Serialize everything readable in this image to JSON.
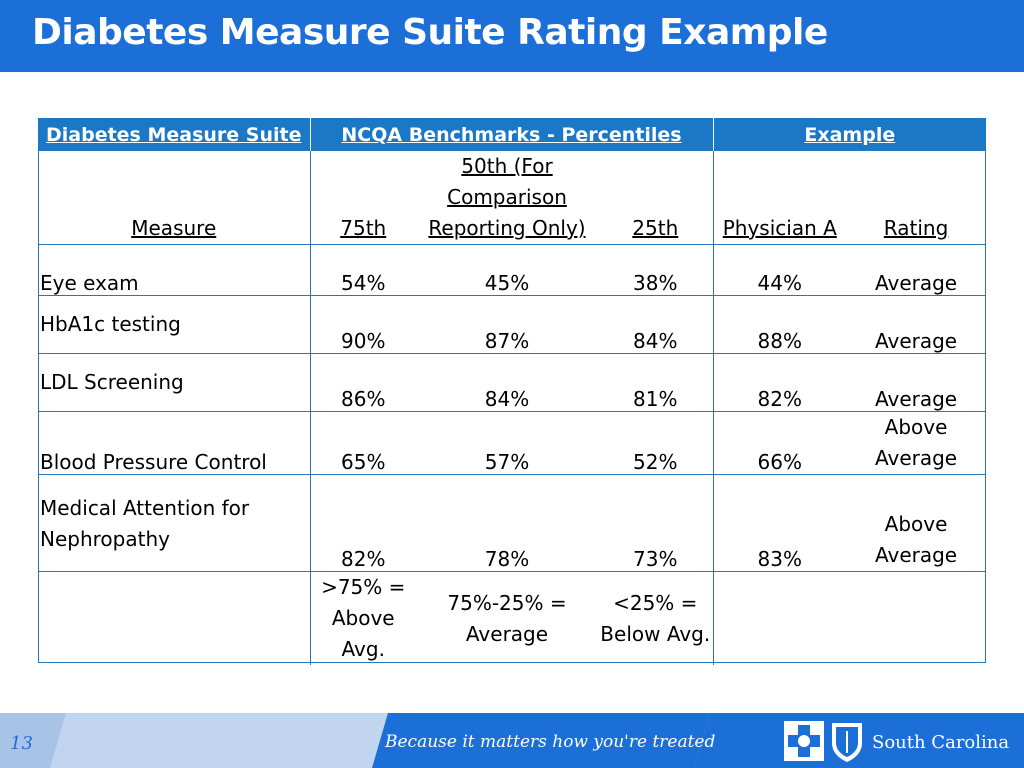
{
  "title": "Diabetes Measure Suite Rating Example",
  "table": {
    "group_headers": {
      "suite": "Diabetes Measure Suite",
      "benchmarks": "NCQA Benchmarks - Percentiles",
      "example": "Example"
    },
    "col_headers": {
      "measure": "Measure",
      "p75": "75th",
      "p50_line1": "50th (For",
      "p50_line2": "Comparison",
      "p50_line3": "Reporting Only)",
      "p25": "25th",
      "physician": "Physician A",
      "rating": "Rating"
    },
    "rows": [
      {
        "measure": "Eye exam",
        "p75": "54%",
        "p50": "45%",
        "p25": "38%",
        "physician": "44%",
        "rating": "Average"
      },
      {
        "measure": "HbA1c testing",
        "p75": "90%",
        "p50": "87%",
        "p25": "84%",
        "physician": "88%",
        "rating": "Average"
      },
      {
        "measure": "LDL Screening",
        "p75": "86%",
        "p50": "84%",
        "p25": "81%",
        "physician": "82%",
        "rating": "Average"
      },
      {
        "measure": "Blood Pressure Control",
        "p75": "65%",
        "p50": "57%",
        "p25": "52%",
        "physician": "66%",
        "rating_line1": "Above",
        "rating_line2": "Average"
      },
      {
        "measure_line1": "Medical Attention for",
        "measure_line2": "Nephropathy",
        "p75": "82%",
        "p50": "78%",
        "p25": "73%",
        "physician": "83%",
        "rating_line1": "Above",
        "rating_line2": "Average"
      }
    ],
    "legend": {
      "above_line1": ">75% =",
      "above_line2": "Above",
      "above_line3": "Avg.",
      "average_line1": "75%-25% =",
      "average_line2": "Average",
      "below_line1": "<25% =",
      "below_line2": "Below Avg."
    }
  },
  "footer": {
    "page_number": "13",
    "tagline": "Because it matters how you're treated",
    "brand": "South Carolina"
  },
  "colors": {
    "title_bar": "#1c6fd7",
    "header_row": "#1a78c6",
    "footer_dark": "#1c6fd7",
    "footer_light": "#a9c3e6"
  }
}
